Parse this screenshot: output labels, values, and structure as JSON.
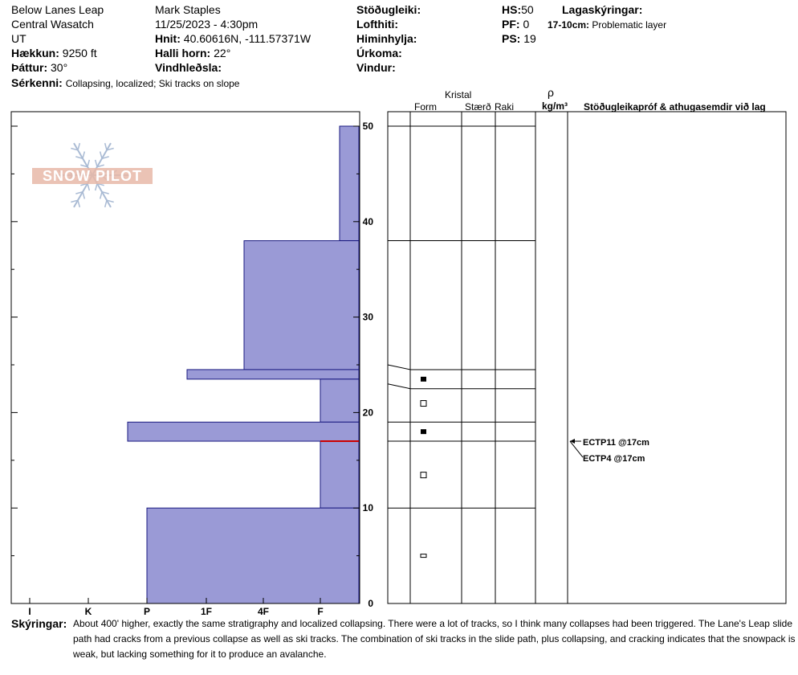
{
  "header": {
    "location_name": "Below Lanes Leap",
    "range": "Central Wasatch",
    "state": "UT",
    "elevation_label": "Hækkun:",
    "elevation_value": "9250 ft",
    "aspect_label": "Þáttur:",
    "aspect_value": "30°",
    "features_label": "Sérkenni:",
    "features_value": "Collapsing, localized;  Ski tracks on slope",
    "observer": "Mark Staples",
    "datetime": "11/25/2023 - 4:30pm",
    "coords_label": "Hnit:",
    "coords_value": "40.60616N, -111.57371W",
    "slope_label": "Halli horn:",
    "slope_value": "22°",
    "wind_loading_label": "Vindhleðsla:",
    "stability_label": "Stöðugleiki:",
    "air_temp_label": "Lofthiti:",
    "sky_label": "Himinhylja:",
    "precip_label": "Úrkoma:",
    "wind_label": "Vindur:",
    "hs_label": "HS:",
    "hs_value": "50",
    "pf_label": "PF:",
    "pf_value": "0",
    "ps_label": "PS:",
    "ps_value": "19",
    "layer_notes_label": "Lagaskýringar:",
    "layer_note_range": "17-10cm:",
    "layer_note_text": "Problematic layer"
  },
  "logo_text": "SNOW PILOT",
  "crystal_table": {
    "group_header": "Kristal",
    "col_form": "Form",
    "col_size": "Stærð",
    "col_moisture": "Raki",
    "col_rho": "ρ",
    "col_density": "kg/m³",
    "col_tests": "Stöðugleikapróf & athugasemdir við lag"
  },
  "tests": [
    {
      "label": "ECTP11 @17cm",
      "depth": 17
    },
    {
      "label": "ECTP4 @17cm",
      "depth": 17
    }
  ],
  "comments_label": "Skýringar:",
  "comments_text": "About 400' higher, exactly the same stratigraphy and localized collapsing. There were a lot of tracks, so I think many collapses had been triggered. The Lane's Leap slide path had cracks from a previous collapse as well as ski tracks. The combination of ski tracks in the slide path, plus collapsing, and cracking indicates that the snowpack is weak, but lacking something for it to produce an avalanche.",
  "colors": {
    "bar_fill": "#9a9ad6",
    "bar_stroke": "#1a1a80",
    "weak_layer": "#cc0000",
    "logo_red": "#e8b8a8",
    "logo_blue": "#aabbd4"
  },
  "chart_data": {
    "type": "bar",
    "title": "",
    "xlabel": "",
    "ylabel": "",
    "hardness_ticks": [
      "I",
      "K",
      "P",
      "1F",
      "4F",
      "F"
    ],
    "ylim": [
      0,
      50
    ],
    "y_ticks": [
      0,
      10,
      20,
      30,
      40,
      50
    ],
    "layers": [
      {
        "top": 50,
        "bottom": 38,
        "hardness": "F-"
      },
      {
        "top": 38,
        "bottom": 24.5,
        "hardness": "4F+"
      },
      {
        "top": 24.5,
        "bottom": 23.5,
        "hardness": "1F+"
      },
      {
        "top": 23.5,
        "bottom": 19,
        "hardness": "F"
      },
      {
        "top": 19,
        "bottom": 17,
        "hardness": "P+"
      },
      {
        "top": 17,
        "bottom": 10,
        "hardness": "F"
      },
      {
        "top": 10,
        "bottom": 0,
        "hardness": "P"
      }
    ],
    "weak_layer_depth": 17,
    "layer_boundaries": [
      50,
      38,
      24.5,
      23.5,
      19,
      17,
      10,
      0
    ],
    "crystal_markers": [
      {
        "depth": 23.5,
        "type": "filled-square"
      },
      {
        "depth": 21,
        "type": "open-square"
      },
      {
        "depth": 18,
        "type": "filled-square"
      },
      {
        "depth": 13.5,
        "type": "open-square"
      },
      {
        "depth": 5,
        "type": "small-rect"
      }
    ]
  }
}
